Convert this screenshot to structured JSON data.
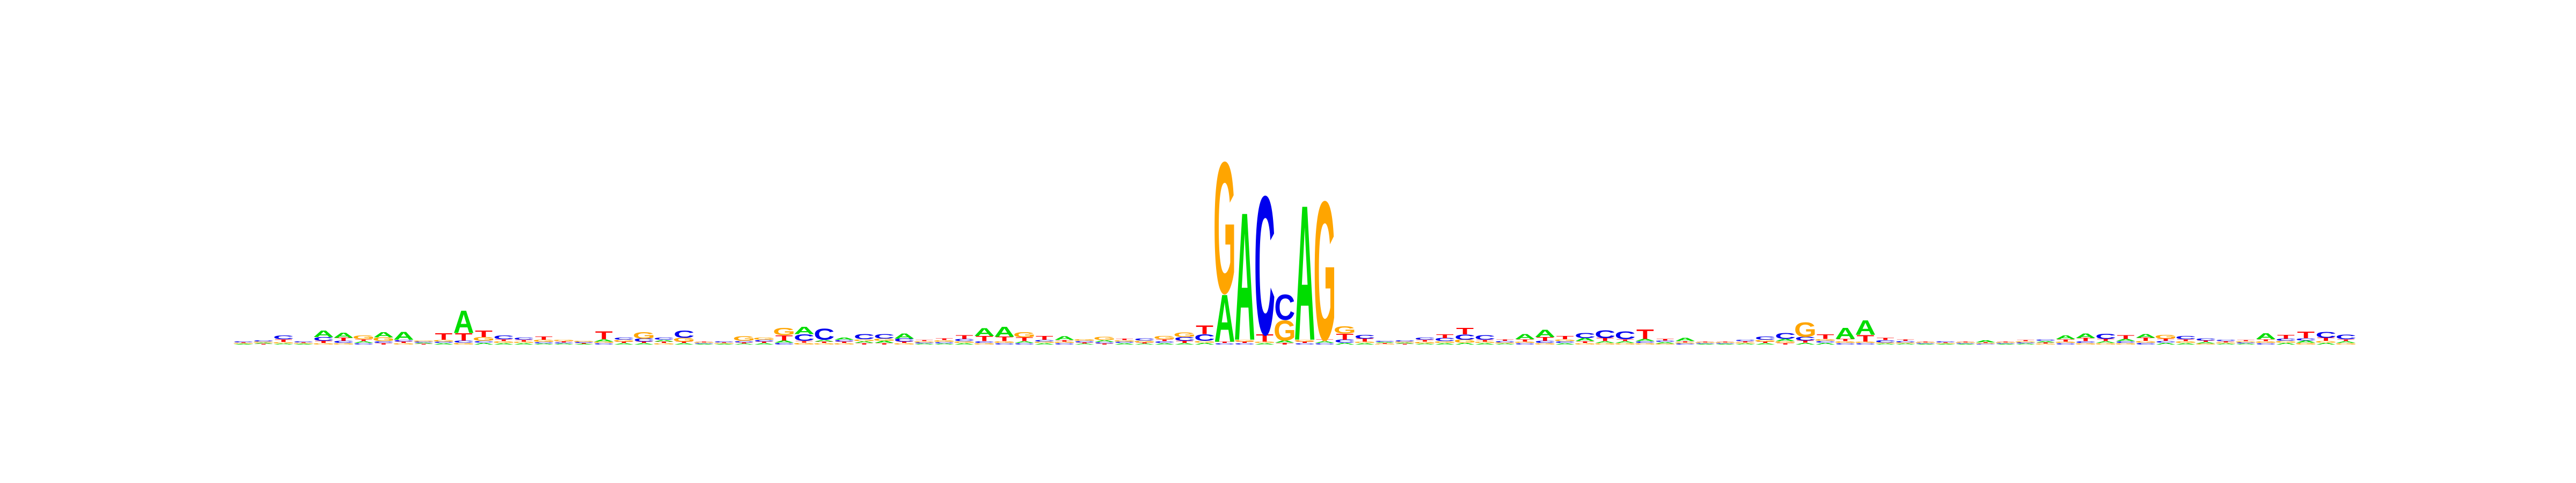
{
  "logo": {
    "title": "",
    "colors": {
      "A": "#00dd00",
      "C": "#0000ee",
      "G": "#ffa500",
      "T": "#ff0000"
    },
    "positions": [
      {
        "A": 0.02,
        "C": 0.03,
        "G": 0.02,
        "T": 0.02
      },
      {
        "A": 0.03,
        "C": 0.04,
        "G": 0.03,
        "T": 0.02
      },
      {
        "A": 0.03,
        "C": 0.1,
        "G": 0.04,
        "T": 0.07
      },
      {
        "A": 0.02,
        "C": 0.03,
        "G": 0.02,
        "T": 0.02
      },
      {
        "A": 0.18,
        "C": 0.1,
        "G": 0.04,
        "T": 0.06
      },
      {
        "A": 0.14,
        "C": 0.06,
        "G": 0.04,
        "T": 0.08
      },
      {
        "A": 0.05,
        "C": 0.04,
        "G": 0.1,
        "T": 0.05
      },
      {
        "A": 0.14,
        "C": 0.05,
        "G": 0.1,
        "T": 0.04
      },
      {
        "A": 0.22,
        "C": 0.05,
        "G": 0.04,
        "T": 0.04
      },
      {
        "A": 0.03,
        "C": 0.03,
        "G": 0.03,
        "T": 0.02
      },
      {
        "A": 0.04,
        "C": 0.04,
        "G": 0.05,
        "T": 0.18
      },
      {
        "A": 0.62,
        "C": 0.06,
        "G": 0.05,
        "T": 0.2
      },
      {
        "A": 0.05,
        "C": 0.05,
        "G": 0.1,
        "T": 0.18
      },
      {
        "A": 0.04,
        "C": 0.1,
        "G": 0.05,
        "T": 0.05
      },
      {
        "A": 0.04,
        "C": 0.06,
        "G": 0.04,
        "T": 0.05
      },
      {
        "A": 0.03,
        "C": 0.04,
        "G": 0.06,
        "T": 0.08
      },
      {
        "A": 0.03,
        "C": 0.03,
        "G": 0.04,
        "T": 0.03
      },
      {
        "A": 0.02,
        "C": 0.03,
        "G": 0.03,
        "T": 0.02
      },
      {
        "A": 0.06,
        "C": 0.04,
        "G": 0.04,
        "T": 0.22
      },
      {
        "A": 0.04,
        "C": 0.06,
        "G": 0.05,
        "T": 0.04
      },
      {
        "A": 0.04,
        "C": 0.08,
        "G": 0.18,
        "T": 0.04
      },
      {
        "A": 0.05,
        "C": 0.06,
        "G": 0.04,
        "T": 0.04
      },
      {
        "A": 0.04,
        "C": 0.2,
        "G": 0.1,
        "T": 0.04
      },
      {
        "A": 0.02,
        "C": 0.02,
        "G": 0.02,
        "T": 0.02
      },
      {
        "A": 0.02,
        "C": 0.03,
        "G": 0.02,
        "T": 0.02
      },
      {
        "A": 0.03,
        "C": 0.04,
        "G": 0.12,
        "T": 0.03
      },
      {
        "A": 0.04,
        "C": 0.05,
        "G": 0.06,
        "T": 0.04
      },
      {
        "A": 0.06,
        "C": 0.05,
        "G": 0.2,
        "T": 0.14
      },
      {
        "A": 0.2,
        "C": 0.18,
        "G": 0.05,
        "T": 0.05
      },
      {
        "A": 0.05,
        "C": 0.3,
        "G": 0.04,
        "T": 0.04
      },
      {
        "A": 0.06,
        "C": 0.05,
        "G": 0.04,
        "T": 0.04
      },
      {
        "A": 0.05,
        "C": 0.14,
        "G": 0.05,
        "T": 0.04
      },
      {
        "A": 0.06,
        "C": 0.12,
        "G": 0.06,
        "T": 0.04
      },
      {
        "A": 0.14,
        "C": 0.08,
        "G": 0.04,
        "T": 0.04
      },
      {
        "A": 0.03,
        "C": 0.03,
        "G": 0.03,
        "T": 0.03
      },
      {
        "A": 0.03,
        "C": 0.04,
        "G": 0.05,
        "T": 0.05
      },
      {
        "A": 0.04,
        "C": 0.06,
        "G": 0.05,
        "T": 0.1
      },
      {
        "A": 0.22,
        "C": 0.05,
        "G": 0.04,
        "T": 0.14
      },
      {
        "A": 0.28,
        "C": 0.04,
        "G": 0.05,
        "T": 0.12
      },
      {
        "A": 0.05,
        "C": 0.04,
        "G": 0.14,
        "T": 0.1
      },
      {
        "A": 0.04,
        "C": 0.05,
        "G": 0.04,
        "T": 0.1
      },
      {
        "A": 0.1,
        "C": 0.04,
        "G": 0.04,
        "T": 0.04
      },
      {
        "A": 0.03,
        "C": 0.04,
        "G": 0.05,
        "T": 0.03
      },
      {
        "A": 0.05,
        "C": 0.04,
        "G": 0.08,
        "T": 0.03
      },
      {
        "A": 0.04,
        "C": 0.04,
        "G": 0.04,
        "T": 0.04
      },
      {
        "A": 0.03,
        "C": 0.06,
        "G": 0.05,
        "T": 0.03
      },
      {
        "A": 0.04,
        "C": 0.05,
        "G": 0.08,
        "T": 0.05
      },
      {
        "A": 0.04,
        "C": 0.1,
        "G": 0.12,
        "T": 0.06
      },
      {
        "A": 0.05,
        "C": 0.18,
        "G": 0.05,
        "T": 0.24
      },
      {
        "A": 1.3,
        "C": 0.04,
        "G": 3.6,
        "T": 0.04
      },
      {
        "A": 3.5,
        "C": 0.04,
        "G": 0.05,
        "T": 0.04
      },
      {
        "A": 0.04,
        "C": 3.8,
        "G": 0.04,
        "T": 0.2
      },
      {
        "A": 0.06,
        "C": 0.7,
        "G": 0.55,
        "T": 0.05
      },
      {
        "A": 3.7,
        "C": 0.04,
        "G": 0.05,
        "T": 0.04
      },
      {
        "A": 0.05,
        "C": 0.04,
        "G": 3.8,
        "T": 0.05
      },
      {
        "A": 0.05,
        "C": 0.08,
        "G": 0.2,
        "T": 0.16
      },
      {
        "A": 0.04,
        "C": 0.1,
        "G": 0.04,
        "T": 0.08
      },
      {
        "A": 0.03,
        "C": 0.03,
        "G": 0.02,
        "T": 0.02
      },
      {
        "A": 0.03,
        "C": 0.04,
        "G": 0.03,
        "T": 0.02
      },
      {
        "A": 0.03,
        "C": 0.06,
        "G": 0.05,
        "T": 0.05
      },
      {
        "A": 0.04,
        "C": 0.08,
        "G": 0.05,
        "T": 0.1
      },
      {
        "A": 0.05,
        "C": 0.14,
        "G": 0.08,
        "T": 0.18
      },
      {
        "A": 0.04,
        "C": 0.12,
        "G": 0.04,
        "T": 0.05
      },
      {
        "A": 0.03,
        "C": 0.04,
        "G": 0.03,
        "T": 0.04
      },
      {
        "A": 0.14,
        "C": 0.04,
        "G": 0.04,
        "T": 0.06
      },
      {
        "A": 0.2,
        "C": 0.06,
        "G": 0.04,
        "T": 0.1
      },
      {
        "A": 0.04,
        "C": 0.05,
        "G": 0.05,
        "T": 0.08
      },
      {
        "A": 0.08,
        "C": 0.14,
        "G": 0.04,
        "T": 0.05
      },
      {
        "A": 0.05,
        "C": 0.22,
        "G": 0.04,
        "T": 0.08
      },
      {
        "A": 0.05,
        "C": 0.22,
        "G": 0.04,
        "T": 0.05
      },
      {
        "A": 0.06,
        "C": 0.05,
        "G": 0.04,
        "T": 0.26
      },
      {
        "A": 0.04,
        "C": 0.04,
        "G": 0.03,
        "T": 0.05
      },
      {
        "A": 0.08,
        "C": 0.03,
        "G": 0.03,
        "T": 0.03
      },
      {
        "A": 0.02,
        "C": 0.02,
        "G": 0.02,
        "T": 0.02
      },
      {
        "A": 0.02,
        "C": 0.02,
        "G": 0.02,
        "T": 0.02
      },
      {
        "A": 0.03,
        "C": 0.04,
        "G": 0.03,
        "T": 0.03
      },
      {
        "A": 0.04,
        "C": 0.08,
        "G": 0.05,
        "T": 0.04
      },
      {
        "A": 0.06,
        "C": 0.16,
        "G": 0.05,
        "T": 0.04
      },
      {
        "A": 0.05,
        "C": 0.1,
        "G": 0.4,
        "T": 0.06
      },
      {
        "A": 0.05,
        "C": 0.05,
        "G": 0.05,
        "T": 0.12
      },
      {
        "A": 0.3,
        "C": 0.04,
        "G": 0.05,
        "T": 0.06
      },
      {
        "A": 0.4,
        "C": 0.04,
        "G": 0.04,
        "T": 0.18
      },
      {
        "A": 0.03,
        "C": 0.06,
        "G": 0.03,
        "T": 0.06
      },
      {
        "A": 0.03,
        "C": 0.04,
        "G": 0.03,
        "T": 0.04
      },
      {
        "A": 0.02,
        "C": 0.02,
        "G": 0.02,
        "T": 0.02
      },
      {
        "A": 0.02,
        "C": 0.03,
        "G": 0.02,
        "T": 0.02
      },
      {
        "A": 0.02,
        "C": 0.02,
        "G": 0.02,
        "T": 0.02
      },
      {
        "A": 0.06,
        "C": 0.02,
        "G": 0.02,
        "T": 0.02
      },
      {
        "A": 0.02,
        "C": 0.02,
        "G": 0.02,
        "T": 0.02
      },
      {
        "A": 0.03,
        "C": 0.03,
        "G": 0.03,
        "T": 0.03
      },
      {
        "A": 0.04,
        "C": 0.04,
        "G": 0.03,
        "T": 0.03
      },
      {
        "A": 0.1,
        "C": 0.04,
        "G": 0.04,
        "T": 0.06
      },
      {
        "A": 0.12,
        "C": 0.05,
        "G": 0.04,
        "T": 0.08
      },
      {
        "A": 0.05,
        "C": 0.14,
        "G": 0.04,
        "T": 0.06
      },
      {
        "A": 0.06,
        "C": 0.05,
        "G": 0.04,
        "T": 0.1
      },
      {
        "A": 0.1,
        "C": 0.05,
        "G": 0.05,
        "T": 0.08
      },
      {
        "A": 0.05,
        "C": 0.05,
        "G": 0.1,
        "T": 0.06
      },
      {
        "A": 0.04,
        "C": 0.08,
        "G": 0.05,
        "T": 0.05
      },
      {
        "A": 0.04,
        "C": 0.06,
        "G": 0.03,
        "T": 0.04
      },
      {
        "A": 0.03,
        "C": 0.04,
        "G": 0.03,
        "T": 0.03
      },
      {
        "A": 0.03,
        "C": 0.03,
        "G": 0.03,
        "T": 0.03
      },
      {
        "A": 0.16,
        "C": 0.04,
        "G": 0.05,
        "T": 0.05
      },
      {
        "A": 0.05,
        "C": 0.06,
        "G": 0.05,
        "T": 0.1
      },
      {
        "A": 0.06,
        "C": 0.06,
        "G": 0.05,
        "T": 0.18
      },
      {
        "A": 0.05,
        "C": 0.16,
        "G": 0.05,
        "T": 0.08
      },
      {
        "A": 0.05,
        "C": 0.12,
        "G": 0.04,
        "T": 0.05
      }
    ]
  }
}
